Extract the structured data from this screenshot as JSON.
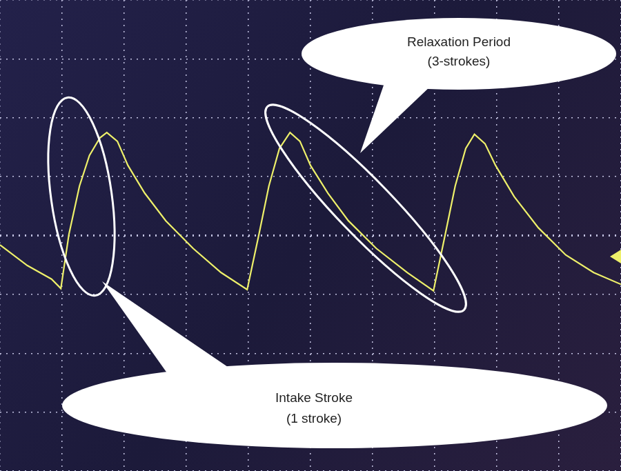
{
  "chart_data": {
    "type": "line",
    "x": [
      0,
      0.44,
      0.83,
      0.98,
      1.11,
      1.28,
      1.44,
      1.61,
      1.72,
      1.89,
      2.06,
      2.33,
      2.67,
      3.11,
      3.56,
      3.98,
      4.17,
      4.33,
      4.5,
      4.67,
      4.83,
      5.0,
      5.28,
      5.61,
      6.06,
      6.56,
      6.98,
      7.17,
      7.33,
      7.5,
      7.64,
      7.81,
      7.98,
      8.28,
      8.67,
      9.11,
      9.56,
      10
    ],
    "values": [
      -0.16,
      -0.51,
      -0.74,
      -0.9,
      0.02,
      0.84,
      1.36,
      1.66,
      1.75,
      1.6,
      1.19,
      0.72,
      0.25,
      -0.22,
      -0.63,
      -0.92,
      0.02,
      0.84,
      1.48,
      1.75,
      1.6,
      1.19,
      0.72,
      0.25,
      -0.22,
      -0.63,
      -0.94,
      0.02,
      0.84,
      1.48,
      1.72,
      1.56,
      1.19,
      0.66,
      0.13,
      -0.33,
      -0.63,
      -0.83
    ],
    "color": "#eef06a",
    "marker": "none",
    "xlim": [
      0,
      10
    ],
    "xticks": [
      0,
      1,
      2,
      3,
      4,
      5,
      6,
      7,
      8,
      9,
      10
    ],
    "ylim": [
      -4,
      4
    ],
    "yticks": [
      -4,
      -3,
      -2,
      -1,
      0,
      1,
      2,
      3,
      4
    ],
    "grid": true,
    "tick_labels": false,
    "annotations": [
      {
        "text": [
          "Relaxation Period",
          "(3-strokes)"
        ]
      },
      {
        "text": [
          "Intake Stroke",
          "(1 stroke)"
        ]
      }
    ]
  }
}
